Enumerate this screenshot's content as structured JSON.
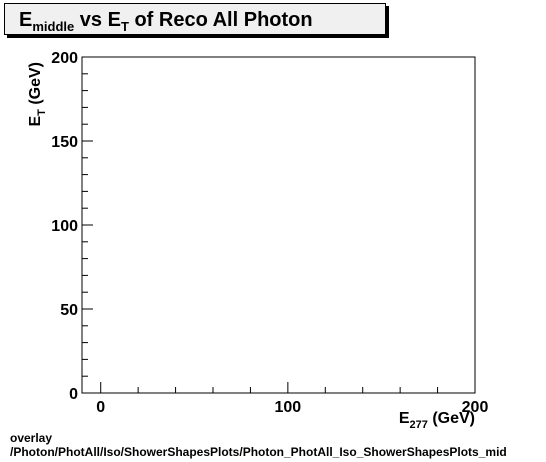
{
  "chart_data": {
    "type": "scatter",
    "title": {
      "main_prefix": "E",
      "main_sub": "middle",
      "main_mid": " vs E",
      "main_sub2": "T",
      "main_suffix": " of Reco All Photon"
    },
    "xlabel": {
      "base": "E",
      "sub": "277",
      "rest": " (GeV)"
    },
    "ylabel": {
      "base": "E",
      "sub": "T",
      "rest": " (GeV)"
    },
    "xlim": [
      -10,
      200
    ],
    "ylim": [
      0,
      200
    ],
    "x_ticks": [
      0,
      100,
      200
    ],
    "y_ticks": [
      0,
      50,
      100,
      150,
      200
    ],
    "x_tick_labels": [
      "0",
      "100",
      "200"
    ],
    "y_tick_labels": [
      "0",
      "50",
      "100",
      "150",
      "200"
    ],
    "grid": false,
    "points": []
  },
  "footer": {
    "line1": "overlay",
    "line2": "/Photon/PhotAll/Iso/ShowerShapesPlots/Photon_PhotAll_Iso_ShowerShapesPlots_mid"
  },
  "colors": {
    "frame": "#000000",
    "title_box": "#f0f0f0",
    "background": "#ffffff"
  }
}
